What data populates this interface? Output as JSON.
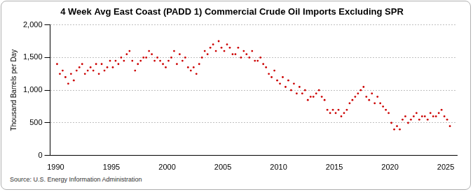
{
  "chart_data": {
    "type": "scatter",
    "title": "4 Week Avg East Coast (PADD 1) Commercial Crude Oil Imports Excluding SPR",
    "y_label": "Thousand Barrels per Day",
    "source": "Source: U.S. Energy Information Administration",
    "color": "#cc0000",
    "marker": "circle",
    "line_style": "none",
    "grid": true,
    "xlim": [
      1989.5,
      2026
    ],
    "xticks": [
      1990,
      1995,
      2000,
      2005,
      2010,
      2015,
      2020,
      2025
    ],
    "ylim": [
      0,
      2000
    ],
    "yticks": [
      0,
      500,
      {
        "value": 1000,
        "label": "1,000"
      },
      {
        "value": 1500,
        "label": "1,500"
      },
      {
        "value": 2000,
        "label": "2,000"
      }
    ],
    "x": [
      1990.125,
      1990.375,
      1990.625,
      1990.875,
      1991.125,
      1991.375,
      1991.625,
      1991.875,
      1992.125,
      1992.375,
      1992.625,
      1992.875,
      1993.125,
      1993.375,
      1993.625,
      1993.875,
      1994.125,
      1994.375,
      1994.625,
      1994.875,
      1995.125,
      1995.375,
      1995.625,
      1995.875,
      1996.125,
      1996.375,
      1996.625,
      1996.875,
      1997.125,
      1997.375,
      1997.625,
      1997.875,
      1998.125,
      1998.375,
      1998.625,
      1998.875,
      1999.125,
      1999.375,
      1999.625,
      1999.875,
      2000.125,
      2000.375,
      2000.625,
      2000.875,
      2001.125,
      2001.375,
      2001.625,
      2001.875,
      2002.125,
      2002.375,
      2002.625,
      2002.875,
      2003.125,
      2003.375,
      2003.625,
      2003.875,
      2004.125,
      2004.375,
      2004.625,
      2004.875,
      2005.125,
      2005.375,
      2005.625,
      2005.875,
      2006.125,
      2006.375,
      2006.625,
      2006.875,
      2007.125,
      2007.375,
      2007.625,
      2007.875,
      2008.125,
      2008.375,
      2008.625,
      2008.875,
      2009.125,
      2009.375,
      2009.625,
      2009.875,
      2010.125,
      2010.375,
      2010.625,
      2010.875,
      2011.125,
      2011.375,
      2011.625,
      2011.875,
      2012.125,
      2012.375,
      2012.625,
      2012.875,
      2013.125,
      2013.375,
      2013.625,
      2013.875,
      2014.125,
      2014.375,
      2014.625,
      2014.875,
      2015.125,
      2015.375,
      2015.625,
      2015.875,
      2016.125,
      2016.375,
      2016.625,
      2016.875,
      2017.125,
      2017.375,
      2017.625,
      2017.875,
      2018.125,
      2018.375,
      2018.625,
      2018.875,
      2019.125,
      2019.375,
      2019.625,
      2019.875,
      2020.125,
      2020.375,
      2020.625,
      2020.875,
      2021.125,
      2021.375,
      2021.625,
      2021.875,
      2022.125,
      2022.375,
      2022.625,
      2022.875,
      2023.125,
      2023.375,
      2023.625,
      2023.875,
      2024.125,
      2024.375,
      2024.625,
      2024.875,
      2025.125,
      2025.375
    ],
    "values": [
      1400,
      1250,
      1300,
      1200,
      1100,
      1250,
      1150,
      1300,
      1350,
      1400,
      1250,
      1300,
      1350,
      1300,
      1400,
      1250,
      1400,
      1300,
      1350,
      1450,
      1350,
      1450,
      1400,
      1500,
      1450,
      1550,
      1600,
      1450,
      1300,
      1400,
      1450,
      1500,
      1500,
      1600,
      1550,
      1450,
      1500,
      1450,
      1400,
      1350,
      1450,
      1500,
      1600,
      1400,
      1550,
      1450,
      1500,
      1350,
      1300,
      1350,
      1250,
      1400,
      1500,
      1600,
      1550,
      1650,
      1700,
      1600,
      1750,
      1650,
      1600,
      1700,
      1650,
      1550,
      1550,
      1650,
      1500,
      1600,
      1550,
      1500,
      1600,
      1450,
      1450,
      1500,
      1400,
      1350,
      1250,
      1200,
      1300,
      1150,
      1100,
      1200,
      1050,
      1150,
      1000,
      1100,
      950,
      1050,
      950,
      1000,
      850,
      900,
      900,
      950,
      1000,
      900,
      850,
      700,
      650,
      700,
      650,
      700,
      600,
      650,
      700,
      800,
      850,
      900,
      950,
      1000,
      1050,
      900,
      850,
      950,
      800,
      900,
      800,
      750,
      700,
      650,
      500,
      400,
      450,
      400,
      550,
      600,
      500,
      550,
      600,
      650,
      550,
      600,
      600,
      550,
      650,
      600,
      600,
      650,
      700,
      600,
      550,
      450
    ]
  }
}
